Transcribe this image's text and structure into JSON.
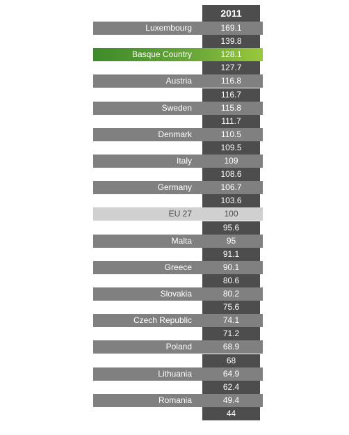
{
  "chart_data": {
    "type": "table",
    "column_header": "2011",
    "rows": [
      {
        "label": "Luxembourg",
        "value": 169.1
      },
      {
        "label": "",
        "value": 139.8
      },
      {
        "label": "Basque Country",
        "value": 128.1,
        "highlight": true
      },
      {
        "label": "",
        "value": 127.7
      },
      {
        "label": "Austria",
        "value": 116.8
      },
      {
        "label": "",
        "value": 116.7
      },
      {
        "label": "Sweden",
        "value": 115.8
      },
      {
        "label": "",
        "value": 111.7
      },
      {
        "label": "Denmark",
        "value": 110.5
      },
      {
        "label": "",
        "value": 109.5
      },
      {
        "label": "Italy",
        "value": 109
      },
      {
        "label": "",
        "value": 108.6
      },
      {
        "label": "Germany",
        "value": 106.7
      },
      {
        "label": "",
        "value": 103.6
      },
      {
        "label": "EU 27",
        "value": 100,
        "reference": true
      },
      {
        "label": "",
        "value": 95.6
      },
      {
        "label": "Malta",
        "value": 95
      },
      {
        "label": "",
        "value": 91.1
      },
      {
        "label": "Greece",
        "value": 90.1
      },
      {
        "label": "",
        "value": 80.6
      },
      {
        "label": "Slovakia",
        "value": 80.2
      },
      {
        "label": "",
        "value": 75.6
      },
      {
        "label": "Czech Republic",
        "value": 74.1
      },
      {
        "label": "",
        "value": 71.2
      },
      {
        "label": "Poland",
        "value": 68.9
      },
      {
        "label": "",
        "value": 68
      },
      {
        "label": "Lithuania",
        "value": 64.9
      },
      {
        "label": "",
        "value": 62.4
      },
      {
        "label": "Romania",
        "value": 49.4
      },
      {
        "label": "",
        "value": 44
      }
    ],
    "colors": {
      "column_dark": "#4d4d4d",
      "labeled_band": "#808080",
      "highlight_band": "#6aa83a",
      "reference_band": "#d0d0d0"
    }
  }
}
